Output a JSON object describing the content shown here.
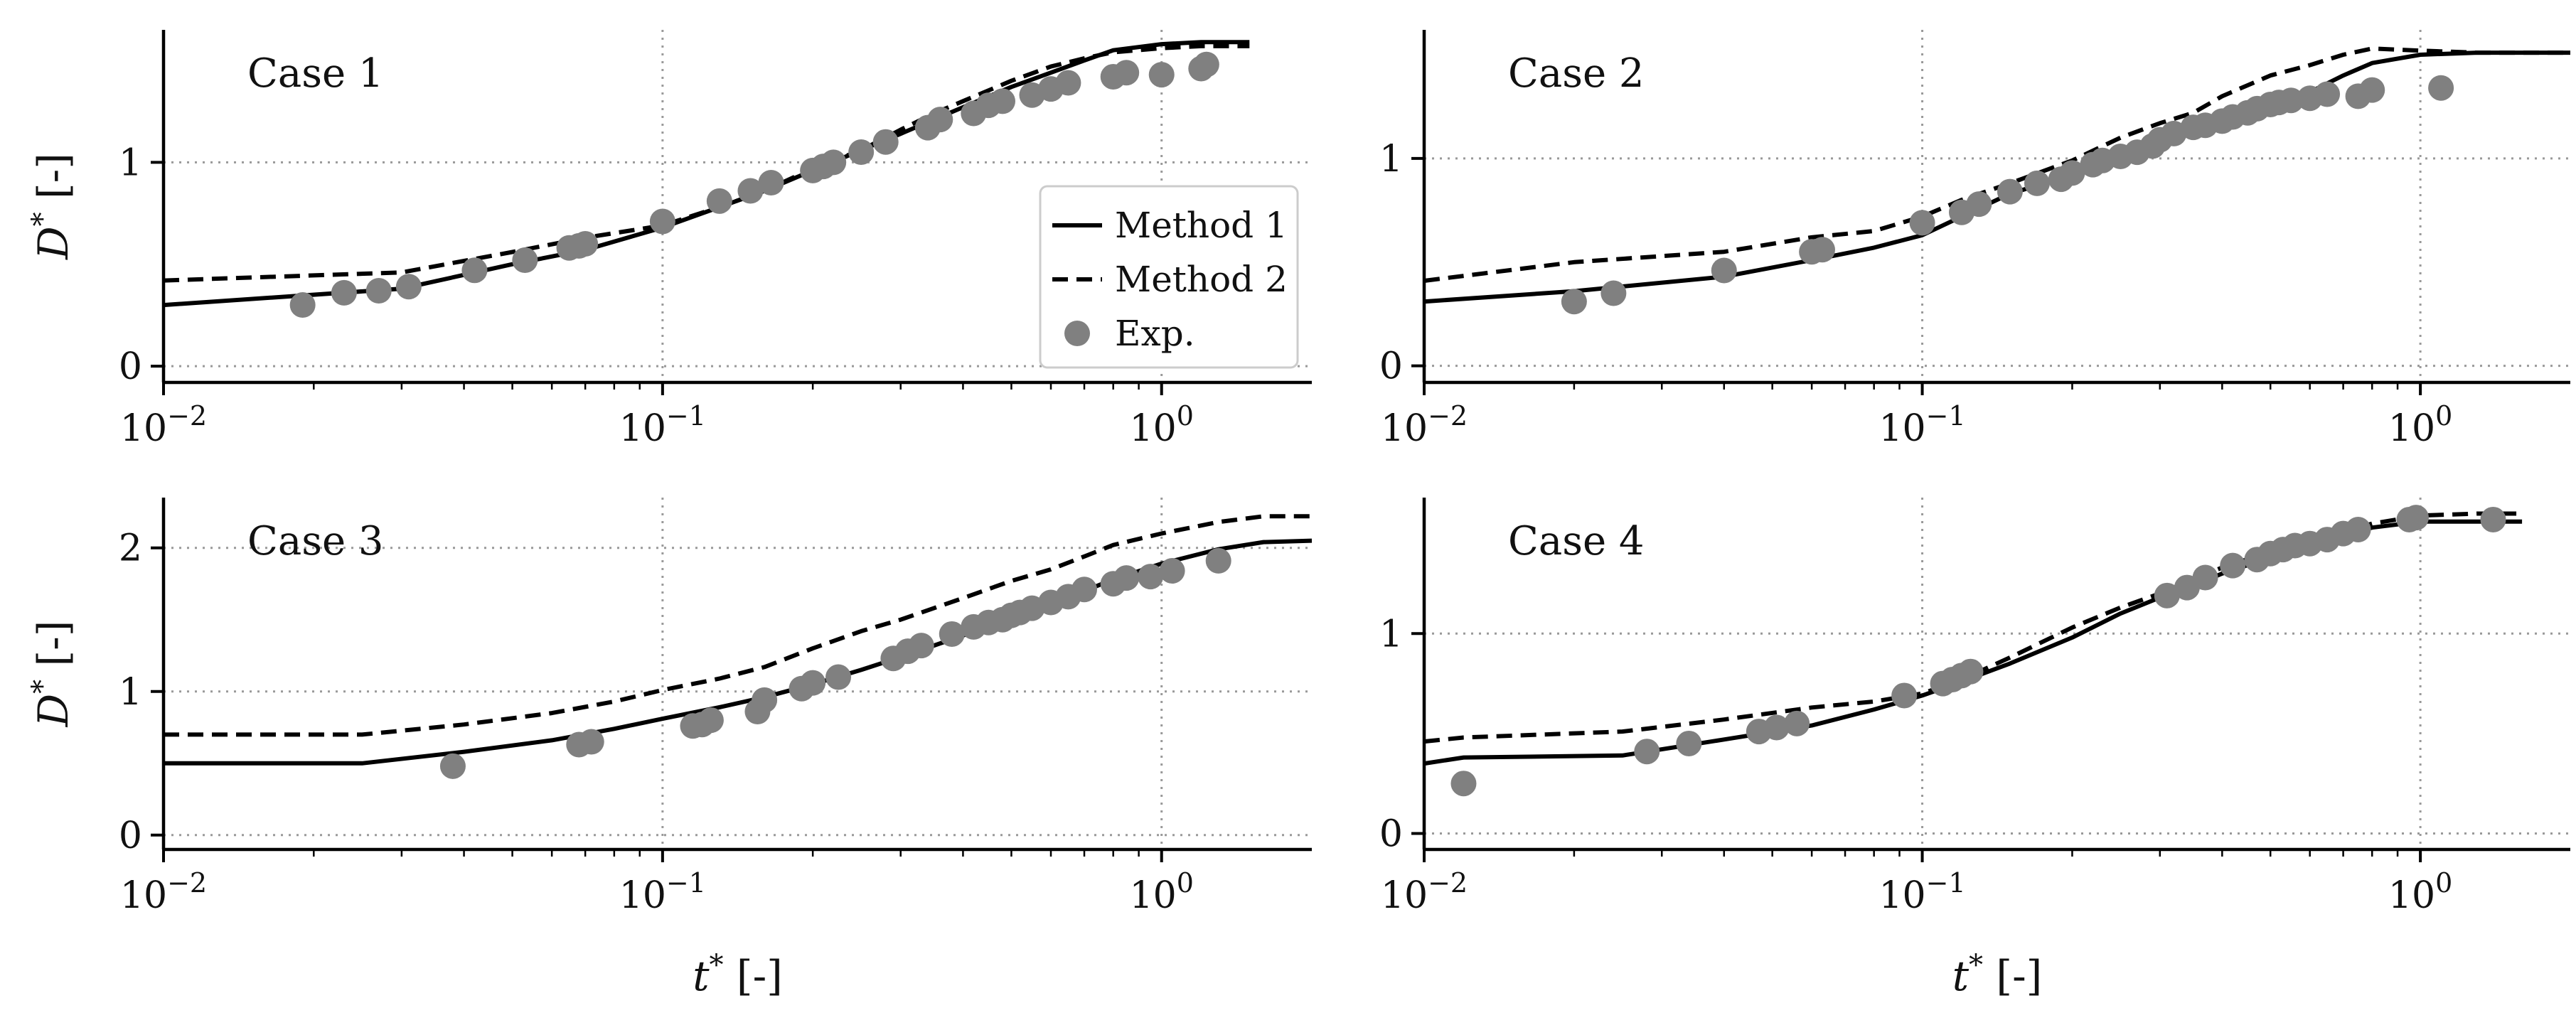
{
  "figure": {
    "xlabel_main": "t",
    "xlabel_sup": "*",
    "xlabel_unit": " [-]",
    "ylabel_main": "D",
    "ylabel_sup": "*",
    "ylabel_unit": " [-]",
    "colors": {
      "methods": "#000000",
      "experiment": "#808080",
      "grid": "#999999"
    }
  },
  "legend": {
    "items": [
      {
        "label": "Method 1",
        "style": "solid"
      },
      {
        "label": "Method 2",
        "style": "dashed"
      },
      {
        "label": "Exp.",
        "style": "marker"
      }
    ]
  },
  "chart_data": [
    {
      "type": "line",
      "title": "Case 1",
      "xscale": "log",
      "xlim": [
        0.01,
        2.0
      ],
      "ylim": [
        -0.08,
        1.65
      ],
      "yticks": [
        0,
        1
      ],
      "ytick_labels": [
        "0",
        "1"
      ],
      "xticks": [
        0.01,
        0.1,
        1.0
      ],
      "xtick_labels": [
        {
          "base": "10",
          "exp": "−2"
        },
        {
          "base": "10",
          "exp": "−1"
        },
        {
          "base": "10",
          "exp": "0"
        }
      ],
      "grid": "dotted at major ticks",
      "legend_position": "right",
      "series": [
        {
          "name": "Method 1",
          "style": "solid",
          "x": [
            0.01,
            0.03,
            0.05,
            0.07,
            0.1,
            0.13,
            0.16,
            0.2,
            0.25,
            0.3,
            0.4,
            0.5,
            0.6,
            0.7,
            0.8,
            1.0,
            1.2,
            1.5
          ],
          "y": [
            0.3,
            0.38,
            0.5,
            0.57,
            0.68,
            0.78,
            0.86,
            0.96,
            1.06,
            1.14,
            1.27,
            1.37,
            1.44,
            1.5,
            1.55,
            1.58,
            1.59,
            1.59
          ]
        },
        {
          "name": "Method 2",
          "style": "dashed",
          "x": [
            0.01,
            0.03,
            0.05,
            0.07,
            0.1,
            0.13,
            0.16,
            0.2,
            0.25,
            0.3,
            0.35,
            0.4,
            0.5,
            0.6,
            0.7,
            0.8,
            1.0,
            1.2,
            1.5
          ],
          "y": [
            0.42,
            0.46,
            0.56,
            0.63,
            0.69,
            0.78,
            0.86,
            0.97,
            1.06,
            1.16,
            1.24,
            1.3,
            1.4,
            1.47,
            1.51,
            1.54,
            1.56,
            1.57,
            1.57
          ]
        },
        {
          "name": "Exp.",
          "style": "marker",
          "x": [
            0.019,
            0.023,
            0.027,
            0.031,
            0.042,
            0.053,
            0.065,
            0.068,
            0.07,
            0.1,
            0.13,
            0.15,
            0.165,
            0.2,
            0.21,
            0.22,
            0.25,
            0.28,
            0.34,
            0.36,
            0.42,
            0.45,
            0.48,
            0.55,
            0.6,
            0.65,
            0.8,
            0.85,
            1.0,
            1.2,
            1.23
          ],
          "y": [
            0.3,
            0.36,
            0.37,
            0.39,
            0.47,
            0.52,
            0.58,
            0.59,
            0.6,
            0.71,
            0.81,
            0.86,
            0.9,
            0.96,
            0.98,
            1.0,
            1.05,
            1.1,
            1.17,
            1.21,
            1.24,
            1.28,
            1.3,
            1.33,
            1.36,
            1.39,
            1.42,
            1.44,
            1.43,
            1.46,
            1.48
          ]
        }
      ]
    },
    {
      "type": "line",
      "title": "Case 2",
      "xscale": "log",
      "xlim": [
        0.01,
        2.0
      ],
      "ylim": [
        -0.08,
        1.62
      ],
      "yticks": [
        0,
        1
      ],
      "ytick_labels": [
        "0",
        "1"
      ],
      "xticks": [
        0.01,
        0.1,
        1.0
      ],
      "xtick_labels": [
        {
          "base": "10",
          "exp": "−2"
        },
        {
          "base": "10",
          "exp": "−1"
        },
        {
          "base": "10",
          "exp": "0"
        }
      ],
      "grid": "dotted at major ticks",
      "series": [
        {
          "name": "Method 1",
          "style": "solid",
          "x": [
            0.01,
            0.02,
            0.04,
            0.06,
            0.08,
            0.1,
            0.12,
            0.15,
            0.2,
            0.25,
            0.3,
            0.4,
            0.5,
            0.6,
            0.7,
            0.8,
            1.0,
            1.3,
            2.0
          ],
          "y": [
            0.31,
            0.36,
            0.43,
            0.51,
            0.57,
            0.63,
            0.72,
            0.83,
            0.92,
            1.02,
            1.1,
            1.18,
            1.25,
            1.32,
            1.4,
            1.46,
            1.5,
            1.51,
            1.51
          ]
        },
        {
          "name": "Method 2",
          "style": "dashed",
          "x": [
            0.01,
            0.02,
            0.04,
            0.06,
            0.08,
            0.1,
            0.12,
            0.15,
            0.2,
            0.25,
            0.3,
            0.35,
            0.4,
            0.5,
            0.6,
            0.7,
            0.8,
            1.0,
            1.3,
            2.0
          ],
          "y": [
            0.41,
            0.5,
            0.55,
            0.62,
            0.65,
            0.72,
            0.8,
            0.88,
            0.99,
            1.1,
            1.17,
            1.22,
            1.3,
            1.4,
            1.45,
            1.5,
            1.53,
            1.52,
            1.51,
            1.51
          ]
        },
        {
          "name": "Exp.",
          "style": "marker",
          "x": [
            0.02,
            0.024,
            0.04,
            0.06,
            0.063,
            0.1,
            0.12,
            0.13,
            0.15,
            0.17,
            0.19,
            0.2,
            0.22,
            0.23,
            0.25,
            0.27,
            0.29,
            0.3,
            0.32,
            0.35,
            0.37,
            0.4,
            0.42,
            0.45,
            0.47,
            0.5,
            0.52,
            0.55,
            0.6,
            0.65,
            0.75,
            0.8,
            1.1
          ],
          "y": [
            0.31,
            0.35,
            0.46,
            0.55,
            0.56,
            0.69,
            0.74,
            0.78,
            0.84,
            0.88,
            0.9,
            0.93,
            0.97,
            0.99,
            1.01,
            1.03,
            1.06,
            1.09,
            1.12,
            1.15,
            1.16,
            1.18,
            1.2,
            1.22,
            1.24,
            1.26,
            1.27,
            1.28,
            1.29,
            1.31,
            1.3,
            1.33,
            1.34
          ]
        }
      ]
    },
    {
      "type": "line",
      "title": "Case 3",
      "xscale": "log",
      "xlim": [
        0.01,
        2.0
      ],
      "ylim": [
        -0.1,
        2.35
      ],
      "yticks": [
        0,
        1,
        2
      ],
      "ytick_labels": [
        "0",
        "1",
        "2"
      ],
      "xticks": [
        0.01,
        0.1,
        1.0
      ],
      "xtick_labels": [
        {
          "base": "10",
          "exp": "−2"
        },
        {
          "base": "10",
          "exp": "−1"
        },
        {
          "base": "10",
          "exp": "0"
        }
      ],
      "grid": "dotted at major ticks",
      "series": [
        {
          "name": "Method 1",
          "style": "solid",
          "x": [
            0.01,
            0.025,
            0.04,
            0.06,
            0.08,
            0.1,
            0.13,
            0.16,
            0.2,
            0.25,
            0.3,
            0.4,
            0.5,
            0.6,
            0.7,
            0.8,
            1.0,
            1.3,
            1.6,
            2.0
          ],
          "y": [
            0.5,
            0.5,
            0.58,
            0.66,
            0.74,
            0.81,
            0.89,
            0.96,
            1.05,
            1.15,
            1.24,
            1.39,
            1.51,
            1.61,
            1.7,
            1.78,
            1.89,
            1.99,
            2.04,
            2.05
          ]
        },
        {
          "name": "Method 2",
          "style": "dashed",
          "x": [
            0.01,
            0.025,
            0.04,
            0.06,
            0.08,
            0.1,
            0.13,
            0.16,
            0.2,
            0.25,
            0.3,
            0.4,
            0.5,
            0.6,
            0.7,
            0.8,
            1.0,
            1.3,
            1.6,
            2.0
          ],
          "y": [
            0.7,
            0.7,
            0.77,
            0.85,
            0.93,
            1.01,
            1.09,
            1.17,
            1.3,
            1.42,
            1.5,
            1.65,
            1.77,
            1.85,
            1.94,
            2.02,
            2.1,
            2.18,
            2.22,
            2.22
          ]
        },
        {
          "name": "Exp.",
          "style": "marker",
          "x": [
            0.038,
            0.068,
            0.072,
            0.115,
            0.12,
            0.125,
            0.155,
            0.16,
            0.19,
            0.2,
            0.225,
            0.29,
            0.31,
            0.33,
            0.38,
            0.42,
            0.45,
            0.48,
            0.5,
            0.52,
            0.55,
            0.6,
            0.65,
            0.7,
            0.8,
            0.85,
            0.95,
            1.05,
            1.3
          ],
          "y": [
            0.48,
            0.63,
            0.65,
            0.76,
            0.77,
            0.8,
            0.86,
            0.94,
            1.02,
            1.06,
            1.1,
            1.23,
            1.28,
            1.32,
            1.4,
            1.45,
            1.48,
            1.5,
            1.53,
            1.55,
            1.58,
            1.62,
            1.66,
            1.71,
            1.75,
            1.79,
            1.8,
            1.84,
            1.91
          ]
        }
      ]
    },
    {
      "type": "line",
      "title": "Case 4",
      "xscale": "log",
      "xlim": [
        0.01,
        2.0
      ],
      "ylim": [
        -0.08,
        1.68
      ],
      "yticks": [
        0,
        1
      ],
      "ytick_labels": [
        "0",
        "1"
      ],
      "xticks": [
        0.01,
        0.1,
        1.0
      ],
      "xtick_labels": [
        {
          "base": "10",
          "exp": "−2"
        },
        {
          "base": "10",
          "exp": "−1"
        },
        {
          "base": "10",
          "exp": "0"
        }
      ],
      "grid": "dotted at major ticks",
      "series": [
        {
          "name": "Method 1",
          "style": "solid",
          "x": [
            0.01,
            0.012,
            0.025,
            0.04,
            0.06,
            0.08,
            0.1,
            0.12,
            0.15,
            0.2,
            0.25,
            0.3,
            0.35,
            0.4,
            0.5,
            0.6,
            0.7,
            0.8,
            1.0,
            1.3,
            1.6
          ],
          "y": [
            0.35,
            0.38,
            0.39,
            0.47,
            0.54,
            0.62,
            0.69,
            0.76,
            0.85,
            0.98,
            1.1,
            1.18,
            1.24,
            1.3,
            1.38,
            1.44,
            1.49,
            1.53,
            1.56,
            1.56,
            1.56
          ]
        },
        {
          "name": "Method 2",
          "style": "dashed",
          "x": [
            0.01,
            0.012,
            0.025,
            0.04,
            0.06,
            0.08,
            0.1,
            0.12,
            0.15,
            0.2,
            0.25,
            0.3,
            0.35,
            0.4,
            0.5,
            0.6,
            0.7,
            0.8,
            1.0,
            1.3,
            1.6
          ],
          "y": [
            0.46,
            0.48,
            0.51,
            0.57,
            0.63,
            0.66,
            0.7,
            0.77,
            0.88,
            1.03,
            1.13,
            1.2,
            1.27,
            1.33,
            1.41,
            1.46,
            1.51,
            1.55,
            1.59,
            1.6,
            1.6
          ]
        },
        {
          "name": "Exp.",
          "style": "marker",
          "x": [
            0.012,
            0.028,
            0.034,
            0.047,
            0.051,
            0.056,
            0.092,
            0.11,
            0.115,
            0.12,
            0.125,
            0.31,
            0.34,
            0.37,
            0.42,
            0.47,
            0.5,
            0.53,
            0.56,
            0.6,
            0.65,
            0.7,
            0.75,
            0.95,
            0.98,
            1.4
          ],
          "y": [
            0.25,
            0.41,
            0.45,
            0.51,
            0.53,
            0.55,
            0.69,
            0.75,
            0.77,
            0.79,
            0.81,
            1.19,
            1.23,
            1.28,
            1.34,
            1.37,
            1.4,
            1.42,
            1.44,
            1.45,
            1.47,
            1.5,
            1.52,
            1.57,
            1.58,
            1.57
          ]
        }
      ]
    }
  ]
}
